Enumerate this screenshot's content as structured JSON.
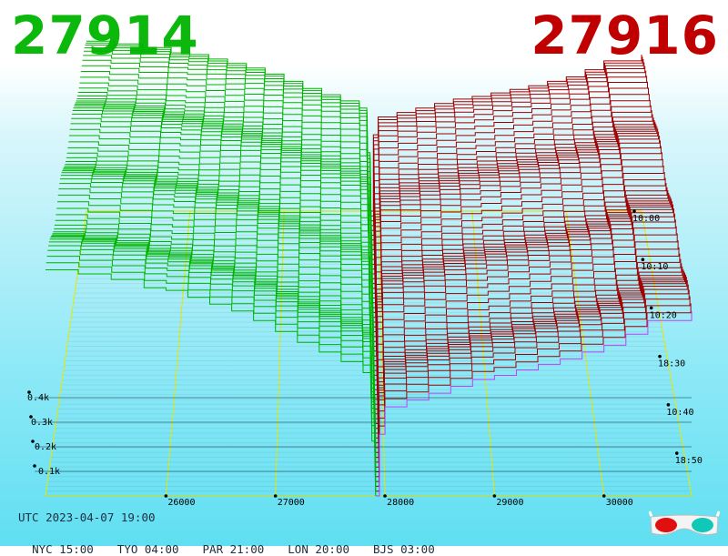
{
  "header": {
    "bid": {
      "value": "27914",
      "color": "#0cb80c"
    },
    "ask": {
      "value": "27916",
      "color": "#c00000"
    }
  },
  "footer": {
    "utc": "UTC 2023-04-07 19:00",
    "zones": [
      {
        "label": "NYC 15:00"
      },
      {
        "label": "TYO 04:00"
      },
      {
        "label": "PAR 21:00"
      },
      {
        "label": "LON 20:00"
      },
      {
        "label": "BJS 03:00"
      }
    ],
    "glasses_icon": "3d-glasses-icon"
  },
  "chart_data": {
    "type": "area",
    "title": "",
    "xlabel": "",
    "ylabel": "",
    "x_ticks": [
      26000,
      27000,
      28000,
      29000,
      30000
    ],
    "x_tick_labels": [
      "26000",
      "27000",
      "28000",
      "29000",
      "30000"
    ],
    "xlim": [
      24900,
      30800
    ],
    "y_ticks": [
      100,
      200,
      300,
      400
    ],
    "y_tick_labels": [
      "0.1k",
      "0.2k",
      "0.3k",
      "0.4k"
    ],
    "ylim": [
      0,
      420
    ],
    "time_ticks": [
      "10:00",
      "10:10",
      "10:20",
      "18:30",
      "10:40",
      "18:50"
    ],
    "mid_price": 27915,
    "snapshots": 60,
    "colors": {
      "bid": "#00b400",
      "ask": "#a00000",
      "latest_ask": "#c040ff",
      "grid": "#e8e800"
    },
    "series": [
      {
        "name": "bid",
        "x": [
          24900,
          25200,
          25500,
          25800,
          26000,
          26200,
          26400,
          26600,
          26800,
          27000,
          27200,
          27400,
          27600,
          27800,
          27880,
          27914
        ],
        "y": [
          165,
          162,
          158,
          152,
          150,
          145,
          140,
          135,
          128,
          120,
          112,
          105,
          98,
          90,
          40,
          0
        ]
      },
      {
        "name": "ask",
        "x": [
          27916,
          27950,
          28000,
          28200,
          28400,
          28600,
          28800,
          29000,
          29200,
          29400,
          29600,
          29800,
          30000,
          30200,
          30400,
          30800
        ],
        "y": [
          0,
          45,
          65,
          70,
          75,
          80,
          85,
          88,
          92,
          96,
          100,
          105,
          110,
          118,
          128,
          135
        ]
      }
    ]
  }
}
